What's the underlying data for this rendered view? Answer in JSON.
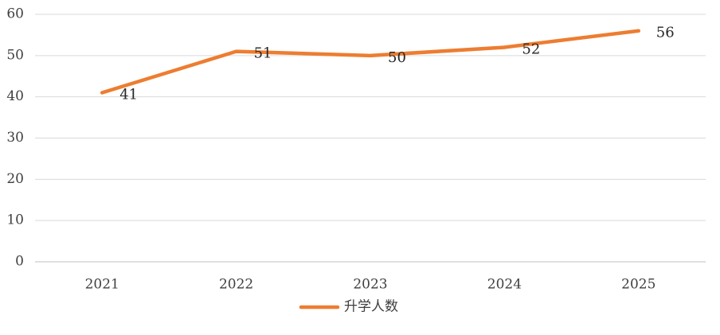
{
  "chart_data": {
    "type": "line",
    "categories": [
      "2021",
      "2022",
      "2023",
      "2024",
      "2025"
    ],
    "series": [
      {
        "name": "升学人数",
        "color": "#ED7D31",
        "values": [
          41,
          51,
          50,
          52,
          56
        ]
      }
    ],
    "ylim": [
      0,
      60
    ],
    "yticks": [
      0,
      10,
      20,
      30,
      40,
      50,
      60
    ],
    "grid": true,
    "legend": "bottom"
  }
}
